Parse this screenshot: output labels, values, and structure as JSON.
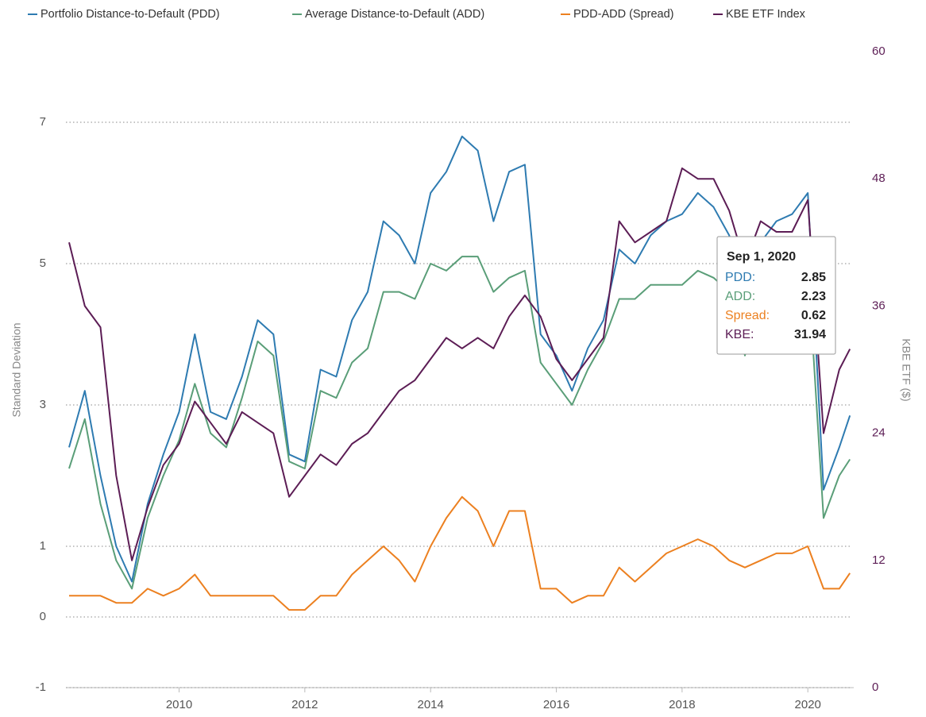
{
  "chart_data": {
    "type": "line",
    "y_label": "Standard Deviation",
    "y2_label": "KBE ETF ($)",
    "x": [
      2008.25,
      2008.5,
      2008.75,
      2009.0,
      2009.25,
      2009.5,
      2009.75,
      2010.0,
      2010.25,
      2010.5,
      2010.75,
      2011.0,
      2011.25,
      2011.5,
      2011.75,
      2012.0,
      2012.25,
      2012.5,
      2012.75,
      2013.0,
      2013.25,
      2013.5,
      2013.75,
      2014.0,
      2014.25,
      2014.5,
      2014.75,
      2015.0,
      2015.25,
      2015.5,
      2015.75,
      2016.0,
      2016.25,
      2016.5,
      2016.75,
      2017.0,
      2017.25,
      2017.5,
      2017.75,
      2018.0,
      2018.25,
      2018.5,
      2018.75,
      2019.0,
      2019.25,
      2019.5,
      2019.75,
      2020.0,
      2020.25,
      2020.5,
      2020.67
    ],
    "series": [
      {
        "name": "Portfolio Distance-to-Default (PDD)",
        "color": "#2e7bb1",
        "values": [
          2.4,
          3.2,
          2.0,
          1.0,
          0.5,
          1.6,
          2.3,
          2.9,
          4.0,
          2.9,
          2.8,
          3.4,
          4.2,
          4.0,
          2.3,
          2.2,
          3.5,
          3.4,
          4.2,
          4.6,
          5.6,
          5.4,
          5.0,
          6.0,
          6.3,
          6.8,
          6.6,
          5.6,
          6.3,
          6.4,
          4.0,
          3.7,
          3.2,
          3.8,
          4.2,
          5.2,
          5.0,
          5.4,
          5.6,
          5.7,
          6.0,
          5.8,
          5.4,
          4.4,
          5.3,
          5.6,
          5.7,
          6.0,
          1.8,
          2.4,
          2.85
        ]
      },
      {
        "name": "Average Distance-to-Default (ADD)",
        "color": "#5a9e78",
        "values": [
          2.1,
          2.8,
          1.6,
          0.8,
          0.4,
          1.4,
          2.0,
          2.5,
          3.3,
          2.6,
          2.4,
          3.1,
          3.9,
          3.7,
          2.2,
          2.1,
          3.2,
          3.1,
          3.6,
          3.8,
          4.6,
          4.6,
          4.5,
          5.0,
          4.9,
          5.1,
          5.1,
          4.6,
          4.8,
          4.9,
          3.6,
          3.3,
          3.0,
          3.5,
          3.9,
          4.5,
          4.5,
          4.7,
          4.7,
          4.7,
          4.9,
          4.8,
          4.6,
          3.7,
          4.5,
          4.7,
          4.8,
          5.0,
          1.4,
          2.0,
          2.23
        ]
      },
      {
        "name": "PDD-ADD (Spread)",
        "color": "#ec8020",
        "values": [
          0.3,
          0.3,
          0.3,
          0.2,
          0.2,
          0.4,
          0.3,
          0.4,
          0.6,
          0.3,
          0.3,
          0.3,
          0.3,
          0.3,
          0.1,
          0.1,
          0.3,
          0.3,
          0.6,
          0.8,
          1.0,
          0.8,
          0.5,
          1.0,
          1.4,
          1.7,
          1.5,
          1.0,
          1.5,
          1.5,
          0.4,
          0.4,
          0.2,
          0.3,
          0.3,
          0.7,
          0.5,
          0.7,
          0.9,
          1.0,
          1.1,
          1.0,
          0.8,
          0.7,
          0.8,
          0.9,
          0.9,
          1.0,
          0.4,
          0.4,
          0.62
        ]
      },
      {
        "name": "KBE ETF Index",
        "color": "#5c1d55",
        "axis": "y2",
        "values": [
          42,
          36,
          34,
          20,
          12,
          17,
          21,
          23,
          27,
          25,
          23,
          26,
          25,
          24,
          18,
          20,
          22,
          21,
          23,
          24,
          26,
          28,
          29,
          31,
          33,
          32,
          33,
          32,
          35,
          37,
          35,
          31,
          29,
          31,
          33,
          44,
          42,
          43,
          44,
          49,
          48,
          48,
          45,
          40,
          44,
          43,
          43,
          46,
          24,
          30,
          31.94
        ]
      }
    ],
    "xlim": [
      2008.2,
      2020.73
    ],
    "xticks": [
      2010,
      2012,
      2014,
      2016,
      2018,
      2020
    ],
    "ylim": [
      -1,
      8
    ],
    "yticks": [
      -1,
      0,
      1,
      3,
      5,
      7
    ],
    "y2lim": [
      0,
      60
    ],
    "y2ticks": [
      0,
      12,
      24,
      36,
      48,
      60
    ],
    "y2_color": "#5c1d55",
    "grid": true,
    "legend": "top",
    "tooltip": {
      "title": "Sep 1, 2020",
      "labels": [
        "PDD:",
        "ADD:",
        "Spread:",
        "KBE:"
      ]
    }
  }
}
